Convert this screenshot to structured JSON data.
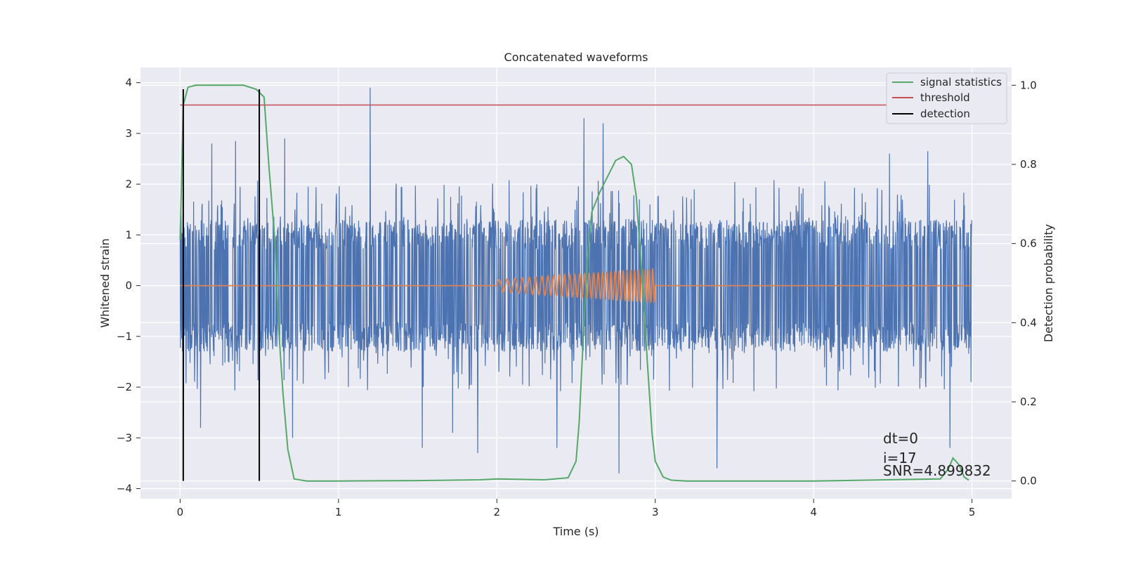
{
  "chart_data": {
    "type": "line",
    "title": "Concatenated waveforms",
    "xlabel": "Time (s)",
    "ylabel_left": "Whitened strain",
    "ylabel_right": "Detection probability",
    "xlim": [
      -0.25,
      5.25
    ],
    "ylim_left": [
      -4.2,
      4.3
    ],
    "ylim_right": [
      -0.045,
      1.045
    ],
    "x_ticks": [
      0,
      1,
      2,
      3,
      4,
      5
    ],
    "x_tick_labels": [
      "0",
      "1",
      "2",
      "3",
      "4",
      "5"
    ],
    "y_ticks_left": [
      4,
      3,
      2,
      1,
      0,
      -1,
      -2,
      -3,
      -4
    ],
    "y_tick_labels_left": [
      "4",
      "3",
      "2",
      "1",
      "0",
      "−1",
      "−2",
      "−3",
      "−4"
    ],
    "y_ticks_right": [
      1.0,
      0.8,
      0.6,
      0.4,
      0.2,
      0.0
    ],
    "y_tick_labels_right": [
      "1.0",
      "0.8",
      "0.6",
      "0.4",
      "0.2",
      "0.0"
    ],
    "grid": true,
    "legend_position": "top-right",
    "series": [
      {
        "name": "signal statistics",
        "axis": "right",
        "color": "#55a868",
        "x": [
          0.0,
          0.02,
          0.05,
          0.1,
          0.2,
          0.3,
          0.4,
          0.48,
          0.53,
          0.56,
          0.6,
          0.62,
          0.65,
          0.68,
          0.72,
          0.8,
          1.0,
          1.5,
          1.9,
          2.0,
          2.15,
          2.3,
          2.45,
          2.5,
          2.52,
          2.55,
          2.58,
          2.6,
          2.65,
          2.7,
          2.75,
          2.8,
          2.85,
          2.88,
          2.92,
          2.95,
          2.98,
          3.0,
          3.05,
          3.1,
          3.2,
          4.0,
          4.8,
          4.85,
          4.88,
          4.92,
          4.95,
          4.98
        ],
        "y": [
          0.61,
          0.95,
          0.995,
          1.0,
          1.0,
          1.0,
          1.0,
          0.99,
          0.97,
          0.8,
          0.6,
          0.4,
          0.22,
          0.08,
          0.005,
          0.0,
          0.0,
          0.001,
          0.003,
          0.005,
          0.004,
          0.003,
          0.008,
          0.05,
          0.15,
          0.4,
          0.6,
          0.68,
          0.73,
          0.77,
          0.81,
          0.82,
          0.8,
          0.72,
          0.5,
          0.3,
          0.12,
          0.05,
          0.01,
          0.002,
          0.0,
          0.0,
          0.005,
          0.03,
          0.058,
          0.04,
          0.01,
          0.002
        ]
      },
      {
        "name": "threshold",
        "axis": "right",
        "color": "#c44e52",
        "x": [
          0,
          5
        ],
        "y": [
          0.95,
          0.95
        ]
      },
      {
        "name": "detection",
        "axis": "right",
        "color": "#000000",
        "segments": [
          {
            "x": 0.02,
            "y": [
              0.0,
              0.99
            ]
          },
          {
            "x": 0.5,
            "y": [
              0.0,
              0.99
            ]
          }
        ]
      }
    ],
    "noise_series": {
      "axis": "left",
      "color": "#4c72b0",
      "x_range": [
        0,
        5
      ],
      "band": [
        -1.3,
        1.3
      ],
      "peaks": [
        {
          "x": 0.02,
          "y": -2.6
        },
        {
          "x": 0.13,
          "y": -2.8
        },
        {
          "x": 0.2,
          "y": 2.8
        },
        {
          "x": 0.35,
          "y": 2.85
        },
        {
          "x": 0.5,
          "y": -2.7
        },
        {
          "x": 0.66,
          "y": 2.9
        },
        {
          "x": 0.71,
          "y": -3.0
        },
        {
          "x": 1.2,
          "y": 3.9
        },
        {
          "x": 1.53,
          "y": -3.2
        },
        {
          "x": 1.72,
          "y": -2.9
        },
        {
          "x": 1.88,
          "y": -3.3
        },
        {
          "x": 2.38,
          "y": -3.2
        },
        {
          "x": 2.55,
          "y": 3.3
        },
        {
          "x": 2.67,
          "y": 3.2
        },
        {
          "x": 2.77,
          "y": -3.7
        },
        {
          "x": 3.39,
          "y": -3.6
        },
        {
          "x": 4.48,
          "y": 2.6
        },
        {
          "x": 4.72,
          "y": 2.65
        },
        {
          "x": 4.86,
          "y": -3.2
        }
      ]
    },
    "chirp_series": {
      "axis": "left",
      "color": "#dd8452",
      "x_range": [
        0,
        5
      ],
      "chirp_start": 2.0,
      "chirp_end": 3.0,
      "amplitude_start": 0.12,
      "amplitude_end": 0.35
    },
    "annotations": [
      "dt=0",
      "i=17",
      "SNR=4.899832"
    ]
  }
}
